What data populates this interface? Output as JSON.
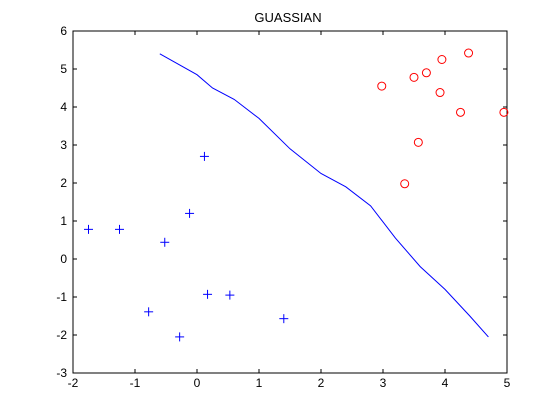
{
  "chart_data": {
    "type": "scatter",
    "title": "GUASSIAN",
    "xlabel": "",
    "ylabel": "",
    "xlim": [
      -2,
      5
    ],
    "ylim": [
      -3,
      6
    ],
    "grid": false,
    "xticks": [
      "-2",
      "-1",
      "0",
      "1",
      "2",
      "3",
      "4",
      "5"
    ],
    "yticks": [
      "-3",
      "-2",
      "-1",
      "0",
      "1",
      "2",
      "3",
      "4",
      "5",
      "6"
    ],
    "series": [
      {
        "marker": "plus",
        "color": "#0000ff",
        "points": [
          [
            -1.75,
            0.78
          ],
          [
            -1.25,
            0.78
          ],
          [
            -0.78,
            -1.39
          ],
          [
            -0.52,
            0.44
          ],
          [
            -0.28,
            -2.05
          ],
          [
            -0.12,
            1.2
          ],
          [
            0.12,
            2.7
          ],
          [
            0.17,
            -0.93
          ],
          [
            0.53,
            -0.95
          ],
          [
            1.4,
            -1.57
          ]
        ]
      },
      {
        "marker": "circle",
        "color": "#ff0000",
        "points": [
          [
            2.98,
            4.55
          ],
          [
            3.35,
            1.98
          ],
          [
            3.5,
            4.78
          ],
          [
            3.57,
            3.07
          ],
          [
            3.7,
            4.9
          ],
          [
            3.92,
            4.38
          ],
          [
            3.95,
            5.25
          ],
          [
            4.25,
            3.86
          ],
          [
            4.38,
            5.42
          ],
          [
            4.95,
            3.86
          ]
        ]
      },
      {
        "marker": "line",
        "color": "#0000ff",
        "points": [
          [
            -0.6,
            5.4
          ],
          [
            0.0,
            4.85
          ],
          [
            0.25,
            4.5
          ],
          [
            0.6,
            4.2
          ],
          [
            1.0,
            3.7
          ],
          [
            1.5,
            2.9
          ],
          [
            2.0,
            2.25
          ],
          [
            2.4,
            1.9
          ],
          [
            2.8,
            1.4
          ],
          [
            3.2,
            0.55
          ],
          [
            3.6,
            -0.2
          ],
          [
            4.0,
            -0.8
          ],
          [
            4.4,
            -1.5
          ],
          [
            4.7,
            -2.05
          ]
        ]
      }
    ]
  }
}
